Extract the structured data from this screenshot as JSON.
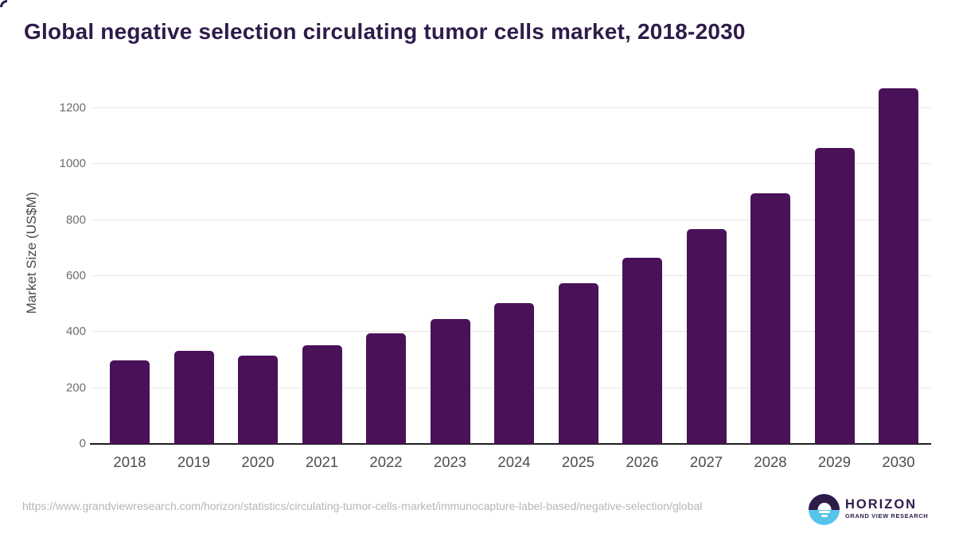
{
  "title": "Global negative selection circulating tumor cells market, 2018-2030",
  "chart_data": {
    "type": "bar",
    "title": "Global negative selection circulating tumor cells market, 2018-2030",
    "categories": [
      "2018",
      "2019",
      "2020",
      "2021",
      "2022",
      "2023",
      "2024",
      "2025",
      "2026",
      "2027",
      "2028",
      "2029",
      "2030"
    ],
    "values": [
      298,
      334,
      317,
      353,
      394,
      446,
      504,
      574,
      665,
      769,
      897,
      1059,
      1270
    ],
    "xlabel": "",
    "ylabel": "Market Size (US$M)",
    "ylim": [
      0,
      1300
    ],
    "yticks": [
      0,
      200,
      400,
      600,
      800,
      1000,
      1200
    ],
    "grid": "horizontal",
    "legend": "none",
    "bar_color": "#4a1158"
  },
  "colors": {
    "bar": "#4a1158",
    "title_text": "#2e1b4a",
    "gridline": "#e6e6e6",
    "axis_line": "#1f1f1f",
    "tick_text": "#6e6e6e",
    "logo_purple": "#2e1b4a",
    "logo_blue": "#55c3ea"
  },
  "footer": {
    "source_url": "https://www.grandviewresearch.com/horizon/statistics/circulating-tumor-cells-market/immunocapture-label-based/negative-selection/global",
    "logo": {
      "brand": "HORIZON",
      "sub_brand": "GRAND VIEW RESEARCH",
      "mark": "sunrise-horizon-icon"
    }
  }
}
